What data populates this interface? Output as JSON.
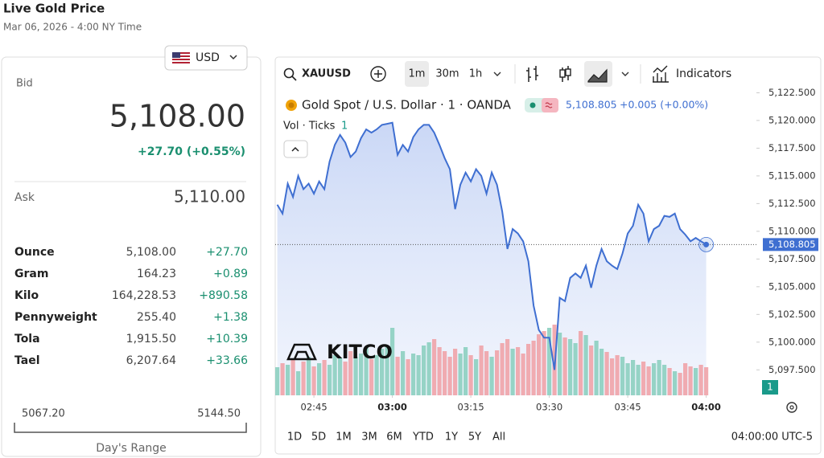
{
  "header": {
    "title": "Live Gold Price",
    "date": "Mar 06, 2026 - 4:00 NY Time"
  },
  "currency": "USD",
  "quote": {
    "bid_label": "Bid",
    "bid": "5,108.00",
    "change": "+27.70 (+0.55%)",
    "ask_label": "Ask",
    "ask": "5,110.00",
    "rows": [
      [
        "Ounce",
        "5,108.00",
        "+27.70"
      ],
      [
        "Gram",
        "164.23",
        "+0.89"
      ],
      [
        "Kilo",
        "164,228.53",
        "+890.58"
      ],
      [
        "Pennyweight",
        "255.40",
        "+1.38"
      ],
      [
        "Tola",
        "1,915.50",
        "+10.39"
      ],
      [
        "Tael",
        "6,207.64",
        "+33.66"
      ]
    ],
    "range": {
      "low": "5067.20",
      "high": "5144.50",
      "label": "Day's Range"
    }
  },
  "toolbar": {
    "symbol": "XAUUSD",
    "intervals": [
      "1m",
      "30m",
      "1h"
    ],
    "indicators": "Indicators"
  },
  "legend": {
    "title": "Gold Spot / U.S. Dollar · 1 · OANDA",
    "price": "5,108.805",
    "change": "+0.005 (+0.00%)",
    "volume": "Vol · Ticks",
    "volume_count": "1"
  },
  "logo": "KITCO",
  "badge": "1",
  "ranges": [
    "1D",
    "5D",
    "1M",
    "3M",
    "6M",
    "YTD",
    "1Y",
    "5Y",
    "All"
  ],
  "clock": "04:00:00 UTC-5",
  "chart_data": {
    "type": "area",
    "x": [
      158,
      159,
      160,
      161,
      162,
      163,
      164,
      165,
      166,
      167,
      168,
      169,
      170,
      171,
      172,
      173,
      174,
      175,
      176,
      177,
      178,
      179,
      180,
      181,
      182,
      183,
      184,
      185,
      186,
      187,
      188,
      189,
      190,
      191,
      192,
      193,
      194,
      195,
      196,
      197,
      198,
      199,
      200,
      201,
      202,
      203,
      204,
      205,
      206,
      207,
      208,
      209,
      210,
      211,
      212,
      213,
      214,
      215,
      216,
      217,
      218,
      219,
      220,
      221,
      222,
      223,
      224,
      225,
      226,
      227,
      228,
      229,
      230,
      231,
      232,
      233,
      234,
      235,
      236,
      237,
      238,
      239,
      240
    ],
    "series": [
      {
        "name": "XAUUSD",
        "color": "#3f6fd1",
        "values": [
          5112.4,
          5111.6,
          5114.3,
          5113.1,
          5115,
          5113.8,
          5114.3,
          5113.4,
          5114.5,
          5113.8,
          5116.3,
          5117.8,
          5118.7,
          5118,
          5116.7,
          5117.2,
          5118.4,
          5119.2,
          5118.9,
          5119.2,
          5119.6,
          5119.7,
          5119.8,
          5116.9,
          5117.8,
          5117.2,
          5118.5,
          5119.2,
          5119.6,
          5119.6,
          5118.9,
          5117.8,
          5116.6,
          5115.6,
          5112,
          5114.2,
          5115.3,
          5114.5,
          5115.6,
          5115,
          5113.4,
          5115.3,
          5114.2,
          5111.8,
          5108.4,
          5110.2,
          5109.8,
          5109.1,
          5107.3,
          5103.3,
          5101.1,
          5100.4,
          5100.4,
          5097.5,
          5104,
          5103.7,
          5105.8,
          5106.2,
          5105.8,
          5106.9,
          5104.9,
          5106.9,
          5108.4,
          5107.3,
          5106.9,
          5106.6,
          5108,
          5109.8,
          5110.5,
          5112.4,
          5111.6,
          5109.1,
          5110.2,
          5110.5,
          5111.4,
          5111.3,
          5111.6,
          5110.2,
          5109.7,
          5109.1,
          5109.4,
          5109.1,
          5108.805
        ]
      }
    ],
    "volume": {
      "up_color": "#8ccfc0",
      "down_color": "#f0a3a9",
      "ylim": [
        0,
        100
      ],
      "values": [
        35,
        40,
        38,
        45,
        30,
        42,
        48,
        36,
        40,
        44,
        38,
        50,
        46,
        42,
        55,
        48,
        52,
        60,
        45,
        50,
        58,
        62,
        84,
        48,
        55,
        45,
        52,
        50,
        62,
        66,
        70,
        60,
        55,
        48,
        58,
        52,
        60,
        50,
        45,
        62,
        55,
        48,
        56,
        65,
        70,
        58,
        60,
        52,
        64,
        68,
        76,
        80,
        84,
        88,
        78,
        72,
        70,
        65,
        80,
        75,
        62,
        68,
        58,
        54,
        46,
        50,
        48,
        40,
        44,
        38,
        42,
        36,
        40,
        44,
        38,
        34,
        30,
        28,
        40,
        36,
        34,
        38,
        35
      ]
    },
    "last_price": {
      "value": 5108.805,
      "label": "5,108.805"
    },
    "xlim": [
      157.6,
      249.6
    ],
    "xticks": [
      {
        "value": 165,
        "label": "02:45"
      },
      {
        "value": 180,
        "label": "03:00"
      },
      {
        "value": 195,
        "label": "03:15"
      },
      {
        "value": 210,
        "label": "03:30"
      },
      {
        "value": 225,
        "label": "03:45"
      },
      {
        "value": 240,
        "label": "04:00"
      }
    ],
    "ylim": [
      5095.2,
      5122.75
    ],
    "yticks": [
      {
        "value": 5097.5,
        "label": "5,097.500"
      },
      {
        "value": 5100,
        "label": "5,100.000"
      },
      {
        "value": 5102.5,
        "label": "5,102.500"
      },
      {
        "value": 5105,
        "label": "5,105.000"
      },
      {
        "value": 5107.5,
        "label": "5,107.500"
      },
      {
        "value": 5110,
        "label": "5,110.000"
      },
      {
        "value": 5112.5,
        "label": "5,112.500"
      },
      {
        "value": 5115,
        "label": "5,115.000"
      },
      {
        "value": 5117.5,
        "label": "5,117.500"
      },
      {
        "value": 5120,
        "label": "5,120.000"
      },
      {
        "value": 5122.5,
        "label": "5,122.500"
      }
    ],
    "grid": false
  }
}
